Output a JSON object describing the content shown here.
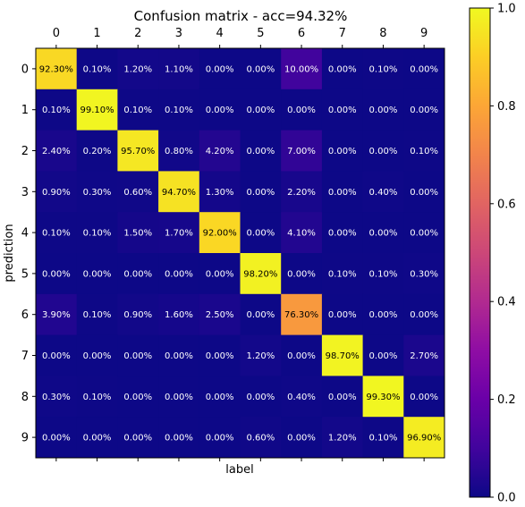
{
  "chart_data": {
    "type": "heatmap",
    "title": "Confusion matrix - acc=94.32%",
    "xlabel": "label",
    "ylabel": "prediction",
    "x_ticks": [
      "0",
      "1",
      "2",
      "3",
      "4",
      "5",
      "6",
      "7",
      "8",
      "9"
    ],
    "y_ticks": [
      "0",
      "1",
      "2",
      "3",
      "4",
      "5",
      "6",
      "7",
      "8",
      "9"
    ],
    "values": [
      [
        0.923,
        0.001,
        0.012,
        0.011,
        0.0,
        0.0,
        0.1,
        0.0,
        0.001,
        0.0
      ],
      [
        0.001,
        0.991,
        0.001,
        0.001,
        0.0,
        0.0,
        0.0,
        0.0,
        0.0,
        0.0
      ],
      [
        0.024,
        0.002,
        0.957,
        0.008,
        0.042,
        0.0,
        0.07,
        0.0,
        0.0,
        0.001
      ],
      [
        0.009,
        0.003,
        0.006,
        0.947,
        0.013,
        0.0,
        0.022,
        0.0,
        0.004,
        0.0
      ],
      [
        0.001,
        0.001,
        0.015,
        0.017,
        0.92,
        0.0,
        0.041,
        0.0,
        0.0,
        0.0
      ],
      [
        0.0,
        0.0,
        0.0,
        0.0,
        0.0,
        0.982,
        0.0,
        0.001,
        0.001,
        0.003
      ],
      [
        0.039,
        0.001,
        0.009,
        0.016,
        0.025,
        0.0,
        0.763,
        0.0,
        0.0,
        0.0
      ],
      [
        0.0,
        0.0,
        0.0,
        0.0,
        0.0,
        0.012,
        0.0,
        0.987,
        0.0,
        0.027
      ],
      [
        0.003,
        0.001,
        0.0,
        0.0,
        0.0,
        0.0,
        0.004,
        0.0,
        0.993,
        0.0
      ],
      [
        0.0,
        0.0,
        0.0,
        0.0,
        0.0,
        0.006,
        0.0,
        0.012,
        0.001,
        0.969
      ]
    ],
    "cell_labels": [
      [
        "92.30%",
        "0.10%",
        "1.20%",
        "1.10%",
        "0.00%",
        "0.00%",
        "10.00%",
        "0.00%",
        "0.10%",
        "0.00%"
      ],
      [
        "0.10%",
        "99.10%",
        "0.10%",
        "0.10%",
        "0.00%",
        "0.00%",
        "0.00%",
        "0.00%",
        "0.00%",
        "0.00%"
      ],
      [
        "2.40%",
        "0.20%",
        "95.70%",
        "0.80%",
        "4.20%",
        "0.00%",
        "7.00%",
        "0.00%",
        "0.00%",
        "0.10%"
      ],
      [
        "0.90%",
        "0.30%",
        "0.60%",
        "94.70%",
        "1.30%",
        "0.00%",
        "2.20%",
        "0.00%",
        "0.40%",
        "0.00%"
      ],
      [
        "0.10%",
        "0.10%",
        "1.50%",
        "1.70%",
        "92.00%",
        "0.00%",
        "4.10%",
        "0.00%",
        "0.00%",
        "0.00%"
      ],
      [
        "0.00%",
        "0.00%",
        "0.00%",
        "0.00%",
        "0.00%",
        "98.20%",
        "0.00%",
        "0.10%",
        "0.10%",
        "0.30%"
      ],
      [
        "3.90%",
        "0.10%",
        "0.90%",
        "1.60%",
        "2.50%",
        "0.00%",
        "76.30%",
        "0.00%",
        "0.00%",
        "0.00%"
      ],
      [
        "0.00%",
        "0.00%",
        "0.00%",
        "0.00%",
        "0.00%",
        "1.20%",
        "0.00%",
        "98.70%",
        "0.00%",
        "2.70%"
      ],
      [
        "0.30%",
        "0.10%",
        "0.00%",
        "0.00%",
        "0.00%",
        "0.00%",
        "0.40%",
        "0.00%",
        "99.30%",
        "0.00%"
      ],
      [
        "0.00%",
        "0.00%",
        "0.00%",
        "0.00%",
        "0.00%",
        "0.60%",
        "0.00%",
        "1.20%",
        "0.10%",
        "96.90%"
      ]
    ],
    "colorbar": {
      "colormap": "plasma",
      "range": [
        0.0,
        1.0
      ],
      "ticks": [
        "0.0",
        "0.2",
        "0.4",
        "0.6",
        "0.8",
        "1.0"
      ]
    },
    "x_ticks_position": "top",
    "grid": false
  }
}
